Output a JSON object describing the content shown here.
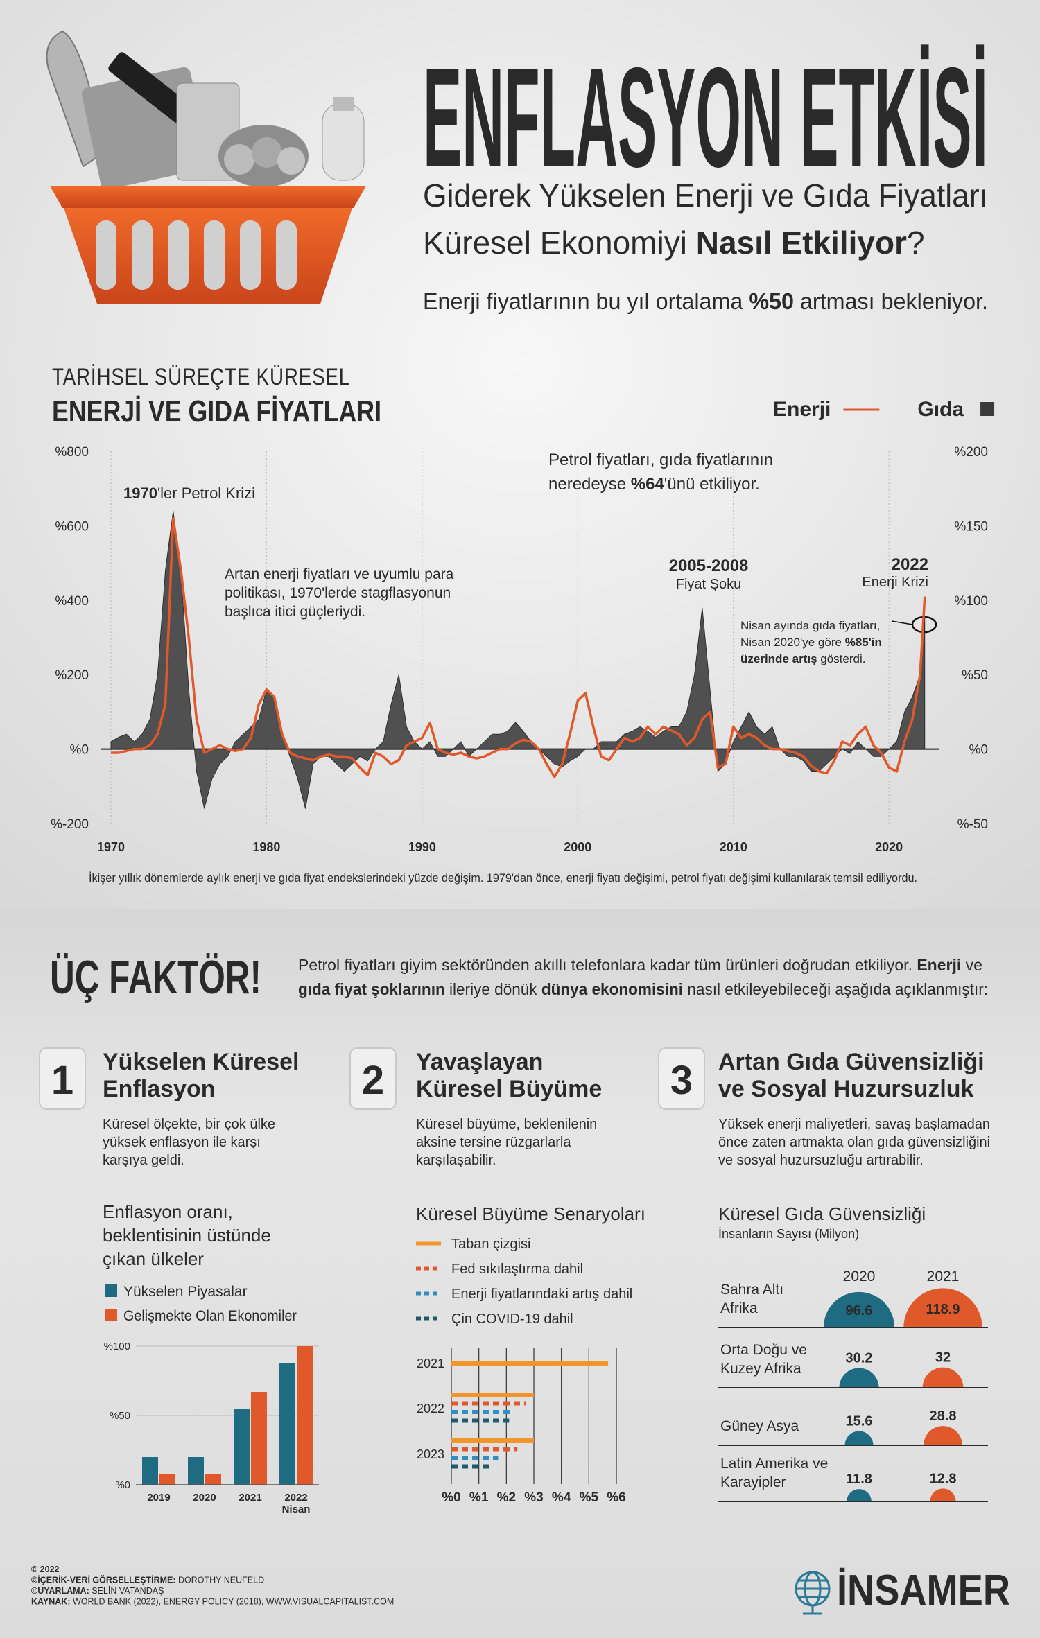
{
  "header": {
    "title": "ENFLASYON ETKİSİ",
    "subtitle": [
      [
        {
          "text": "Giderek Yükselen Enerji ve Gıda Fiyatları"
        }
      ],
      [
        {
          "text": "Küresel Ekonomiyi "
        },
        {
          "text": "Nasıl Etkiliyor",
          "bold": true
        },
        {
          "text": "?"
        }
      ]
    ],
    "lead": [
      {
        "text": "Enerji fiyatlarının bu yıl ortalama "
      },
      {
        "text": "%50",
        "bold": true
      },
      {
        "text": " artması bekleniyor."
      }
    ]
  },
  "chart_data": [
    {
      "type": "line",
      "title": [
        "TARİHSEL SÜREÇTE KÜRESEL",
        "ENERJİ VE GIDA FİYATLARI"
      ],
      "legend": "top-right",
      "grid": true,
      "xlim": [
        1969.6,
        2023.2
      ],
      "xticks": [
        1970,
        1980,
        1990,
        2000,
        2010,
        2020
      ],
      "ylim": [
        -200,
        800
      ],
      "yticks": [
        {
          "value": 800,
          "label": "%800"
        },
        {
          "value": 600,
          "label": "%600"
        },
        {
          "value": 400,
          "label": "%400"
        },
        {
          "value": 200,
          "label": "%200"
        },
        {
          "value": 0,
          "label": "%0"
        },
        {
          "value": -200,
          "label": "%-200"
        }
      ],
      "y2lim": [
        -50,
        200
      ],
      "y2ticks": [
        {
          "value": 200,
          "label": "%200"
        },
        {
          "value": 150,
          "label": "%150"
        },
        {
          "value": 100,
          "label": "%100"
        },
        {
          "value": 50,
          "label": "%50"
        },
        {
          "value": 0,
          "label": "%0"
        },
        {
          "value": -50,
          "label": "%-50"
        }
      ],
      "x": [
        1970,
        1970.5,
        1971,
        1971.5,
        1972,
        1972.5,
        1973,
        1973.5,
        1974,
        1974.5,
        1975,
        1975.5,
        1976,
        1976.5,
        1977,
        1977.5,
        1978,
        1978.5,
        1979,
        1979.5,
        1980,
        1980.5,
        1981,
        1981.5,
        1982,
        1982.5,
        1983,
        1983.5,
        1984,
        1984.5,
        1985,
        1985.5,
        1986,
        1986.5,
        1987,
        1987.5,
        1988,
        1988.5,
        1989,
        1989.5,
        1990,
        1990.5,
        1991,
        1991.5,
        1992,
        1992.5,
        1993,
        1993.5,
        1994,
        1994.5,
        1995,
        1995.5,
        1996,
        1996.5,
        1997,
        1997.5,
        1998,
        1998.5,
        1999,
        1999.5,
        2000,
        2000.5,
        2001,
        2001.5,
        2002,
        2002.5,
        2003,
        2003.5,
        2004,
        2004.5,
        2005,
        2005.5,
        2006,
        2006.5,
        2007,
        2007.5,
        2008,
        2008.5,
        2009,
        2009.5,
        2010,
        2010.5,
        2011,
        2011.5,
        2012,
        2012.5,
        2013,
        2013.5,
        2014,
        2014.5,
        2015,
        2015.5,
        2016,
        2016.5,
        2017,
        2017.5,
        2018,
        2018.5,
        2019,
        2019.5,
        2020,
        2020.5,
        2021,
        2021.5,
        2022,
        2022.3
      ],
      "series": [
        {
          "name": "Gıda",
          "color": "#3b3b3b",
          "mark": "area",
          "axis": "y2",
          "values": [
            5,
            8,
            10,
            5,
            10,
            20,
            50,
            120,
            160,
            120,
            40,
            -15,
            -40,
            -20,
            -10,
            -5,
            5,
            10,
            15,
            20,
            40,
            35,
            10,
            -5,
            -20,
            -40,
            -10,
            -5,
            -5,
            -10,
            -15,
            -10,
            -5,
            -8,
            0,
            5,
            30,
            50,
            15,
            5,
            0,
            5,
            -5,
            -5,
            0,
            5,
            -5,
            0,
            5,
            10,
            10,
            12,
            18,
            12,
            5,
            0,
            -5,
            -10,
            -12,
            -8,
            -5,
            0,
            0,
            5,
            5,
            5,
            10,
            12,
            15,
            12,
            8,
            12,
            15,
            15,
            25,
            50,
            95,
            40,
            -15,
            -10,
            5,
            15,
            25,
            15,
            10,
            15,
            0,
            -5,
            -5,
            -8,
            -15,
            -15,
            -10,
            -5,
            0,
            -3,
            5,
            0,
            -5,
            -5,
            0,
            5,
            25,
            35,
            50,
            88
          ]
        },
        {
          "name": "Enerji",
          "color": "#e0592a",
          "mark": "line",
          "values": [
            -10,
            -10,
            -5,
            0,
            0,
            10,
            40,
            120,
            620,
            480,
            300,
            80,
            -10,
            0,
            10,
            0,
            -5,
            0,
            30,
            120,
            160,
            140,
            40,
            -10,
            -20,
            -25,
            -30,
            -20,
            -15,
            -20,
            -20,
            -25,
            -50,
            -70,
            -10,
            -20,
            -40,
            -30,
            10,
            20,
            30,
            70,
            0,
            -10,
            -15,
            -10,
            -20,
            -25,
            -20,
            -10,
            0,
            0,
            15,
            25,
            20,
            0,
            -40,
            -75,
            -40,
            40,
            130,
            150,
            60,
            -20,
            -30,
            0,
            30,
            20,
            30,
            60,
            40,
            60,
            50,
            40,
            10,
            30,
            80,
            100,
            -50,
            -40,
            60,
            30,
            40,
            30,
            10,
            0,
            0,
            -5,
            -10,
            -20,
            -45,
            -60,
            -65,
            -30,
            20,
            10,
            40,
            60,
            10,
            -10,
            -50,
            -60,
            20,
            80,
            200,
            410
          ]
        }
      ],
      "annotations": [
        {
          "lines": [
            [
              {
                "text": "1970",
                "bold": true
              },
              {
                "text": "'ler Petrol Krizi"
              }
            ]
          ]
        },
        {
          "lines": [
            [
              {
                "text": "Artan enerji fiyatları ve uyumlu para"
              }
            ],
            [
              {
                "text": "politikası, 1970'lerde stagflasyonun"
              }
            ],
            [
              {
                "text": "başlıca itici güçleriydi."
              }
            ]
          ]
        },
        {
          "lines": [
            [
              {
                "text": "Petrol fiyatları, gıda fiyatlarının"
              }
            ],
            [
              {
                "text": "neredeyse "
              },
              {
                "text": "%64",
                "bold": true
              },
              {
                "text": "'ünü etkiliyor."
              }
            ]
          ]
        },
        {
          "lines": [
            [
              {
                "text": "2005-2008",
                "bold": true
              }
            ],
            [
              {
                "text": "Fiyat Şoku"
              }
            ]
          ]
        },
        {
          "lines": [
            [
              {
                "text": "2022",
                "bold": true
              }
            ],
            [
              {
                "text": "Enerji Krizi"
              }
            ]
          ]
        },
        {
          "lines": [
            [
              {
                "text": "Nisan ayında gıda fiyatları,"
              }
            ],
            [
              {
                "text": "Nisan 2020'ye göre "
              },
              {
                "text": "%85'in",
                "bold": true
              }
            ],
            [
              {
                "text": "üzerinde artış",
                "bold": true
              },
              {
                "text": " gösterdi."
              }
            ]
          ]
        }
      ],
      "note": "İkişer yıllık dönemlerde aylık enerji ve gıda fiyat endekslerindeki yüzde değişim. 1979'dan önce, enerji fiyatı değişimi, petrol fiyatı değişimi kullanılarak temsil ediliyordu."
    },
    {
      "type": "bar",
      "title": [
        "Enflasyon oranı,",
        "beklentisinin üstünde",
        "çıkan ülkeler"
      ],
      "categories": [
        "2019",
        "2020",
        "2021",
        "2022\nNisan"
      ],
      "ylim": [
        0,
        100
      ],
      "yticks": [
        {
          "value": 0,
          "label": "%0"
        },
        {
          "value": 50,
          "label": "%50"
        },
        {
          "value": 100,
          "label": "%100"
        }
      ],
      "grid": true,
      "series": [
        {
          "name": "Yükselen Piyasalar",
          "color": "#1f6b82",
          "values": [
            20,
            20,
            55,
            88
          ]
        },
        {
          "name": "Gelişmekte Olan Ekonomiler",
          "color": "#e0592a",
          "values": [
            8,
            8,
            67,
            100
          ]
        }
      ]
    },
    {
      "type": "hbar",
      "title": "Küresel Büyüme Senaryoları",
      "categories": [
        "2021",
        "2022",
        "2023"
      ],
      "xlim": [
        0,
        6
      ],
      "xticks": [
        {
          "value": 0,
          "label": "%0"
        },
        {
          "value": 1,
          "label": "%1"
        },
        {
          "value": 2,
          "label": "%2"
        },
        {
          "value": 3,
          "label": "%3"
        },
        {
          "value": 4,
          "label": "%4"
        },
        {
          "value": 5,
          "label": "%5"
        },
        {
          "value": 6,
          "label": "%6"
        }
      ],
      "grid": true,
      "series": [
        {
          "name": "Taban çizgisi",
          "color": "#f2962c",
          "style": "solid",
          "values": [
            5.7,
            3.0,
            3.0
          ]
        },
        {
          "name": "Fed sıkılaştırma dahil",
          "color": "#e0592a",
          "style": "dashed",
          "values": [
            null,
            2.7,
            2.4
          ]
        },
        {
          "name": "Enerji fiyatlarındaki artış dahil",
          "color": "#2f8fc4",
          "style": "dashed",
          "values": [
            null,
            2.2,
            1.7
          ]
        },
        {
          "name": "Çin COVID-19 dahil",
          "color": "#1d5a70",
          "style": "dashed",
          "values": [
            null,
            2.1,
            1.5
          ]
        }
      ]
    },
    {
      "type": "semicircle",
      "title": "Küresel Gıda Güvensizliği",
      "subtitle": "İnsanların Sayısı (Milyon)",
      "categories": [
        "Sahra Altı\nAfrika",
        "Orta Doğu ve\nKuzey Afrika",
        "Güney Asya",
        "Latin Amerika ve\nKarayipler"
      ],
      "series": [
        {
          "name": "2020",
          "color": "#1f6b82",
          "values": [
            96.6,
            30.2,
            15.6,
            11.8
          ]
        },
        {
          "name": "2021",
          "color": "#e0592a",
          "values": [
            118.9,
            32,
            28.8,
            12.8
          ]
        }
      ]
    }
  ],
  "factors": {
    "title": "ÜÇ FAKTÖR!",
    "intro": [
      [
        {
          "text": "Petrol fiyatları giyim sektöründen akıllı telefonlara kadar tüm ürünleri doğrudan etkiliyor. "
        },
        {
          "text": "Enerji",
          "bold": true
        },
        {
          "text": " ve"
        }
      ],
      [
        {
          "text": "gıda fiyat şoklarının",
          "bold": true
        },
        {
          "text": " ileriye dönük "
        },
        {
          "text": "dünya ekonomisini",
          "bold": true
        },
        {
          "text": " nasıl etkileyebileceği aşağıda açıklanmıştır:"
        }
      ]
    ],
    "items": [
      {
        "number": 1,
        "title": [
          "Yükselen Küresel",
          "Enflasyon"
        ],
        "description": [
          "Küresel ölçekte, bir çok ülke",
          "yüksek enflasyon ile karşı",
          "karşıya geldi."
        ]
      },
      {
        "number": 2,
        "title": [
          "Yavaşlayan",
          "Küresel Büyüme"
        ],
        "description": [
          "Küresel büyüme, beklenilenin",
          "aksine tersine rüzgarlarla",
          "karşılaşabilir."
        ]
      },
      {
        "number": 3,
        "title": [
          "Artan Gıda Güvensizliği",
          "ve Sosyal Huzursuzluk"
        ],
        "description": [
          "Yüksek enerji maliyetleri, savaş başlamadan",
          "önce zaten artmakta olan gıda güvensizliğini",
          "ve sosyal huzursuzluğu artırabilir."
        ]
      }
    ]
  },
  "footer": {
    "credits": [
      [
        {
          "text": "© 2022",
          "bold": true
        }
      ],
      [
        {
          "text": "©İÇERİK-VERİ GÖRSELLEŞTİRME:",
          "bold": true
        },
        {
          "text": " DOROTHY NEUFELD"
        }
      ],
      [
        {
          "text": "©UYARLAMA:",
          "bold": true
        },
        {
          "text": " SELİN VATANDAŞ"
        }
      ],
      [
        {
          "text": "KAYNAK:",
          "bold": true
        },
        {
          "text": " WORLD BANK (2022), ENERGY POLICY (2018), WWW.VISUALCAPITALIST.COM"
        }
      ]
    ],
    "logo": "İNSAMER"
  }
}
